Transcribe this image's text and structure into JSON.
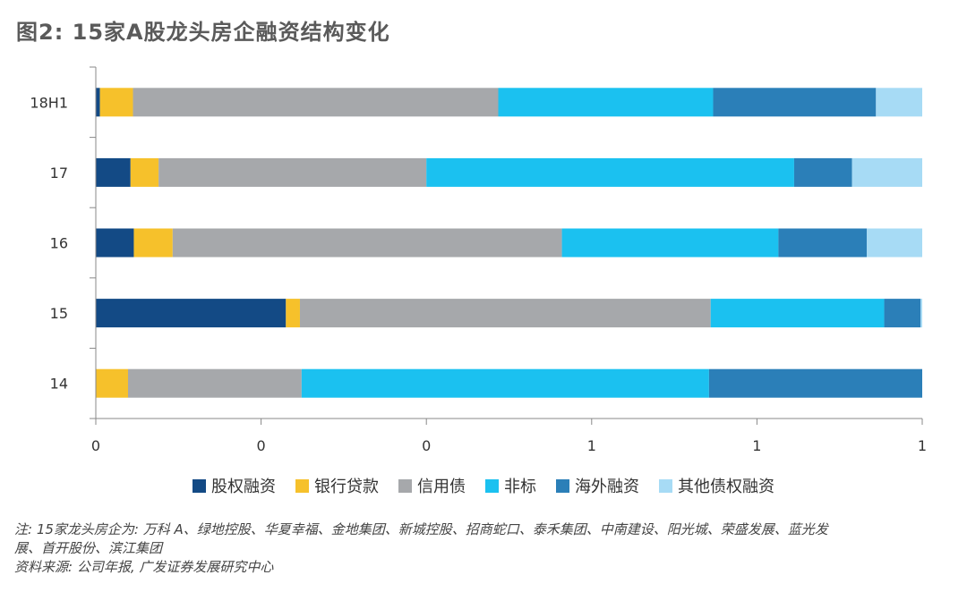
{
  "title": "图2: 15家A股龙头房企融资结构变化",
  "chart_data": {
    "type": "bar",
    "orientation": "horizontal",
    "stacked": true,
    "categories": [
      "18H1",
      "17",
      "16",
      "15",
      "14"
    ],
    "series": [
      {
        "name": "股权融资",
        "color": "#134a85",
        "values": [
          0.005,
          0.042,
          0.046,
          0.23,
          0.0
        ]
      },
      {
        "name": "银行贷款",
        "color": "#f6c12b",
        "values": [
          0.04,
          0.034,
          0.047,
          0.017,
          0.039
        ]
      },
      {
        "name": "信用债",
        "color": "#a6a8ab",
        "values": [
          0.442,
          0.324,
          0.471,
          0.497,
          0.21
        ]
      },
      {
        "name": "非标",
        "color": "#1bc1f0",
        "values": [
          0.26,
          0.445,
          0.262,
          0.21,
          0.493
        ]
      },
      {
        "name": "海外融资",
        "color": "#2b7fb8",
        "values": [
          0.197,
          0.07,
          0.107,
          0.044,
          0.258
        ]
      },
      {
        "name": "其他债权融资",
        "color": "#a7dbf5",
        "values": [
          0.056,
          0.085,
          0.067,
          0.002,
          0.0
        ]
      }
    ],
    "x_tick_labels": [
      "0",
      "0",
      "0",
      "1",
      "1",
      "1"
    ],
    "xlim": [
      0,
      1
    ],
    "legend_position": "bottom",
    "grid": false
  },
  "notes": {
    "line1": "注: 15家龙头房企为: 万科 A、绿地控股、华夏幸福、金地集团、新城控股、招商蛇口、泰禾集团、中南建设、阳光城、荣盛发展、蓝光发",
    "line2": "展、首开股份、滨江集团",
    "source": "资料来源: 公司年报, 广发证券发展研究中心"
  }
}
